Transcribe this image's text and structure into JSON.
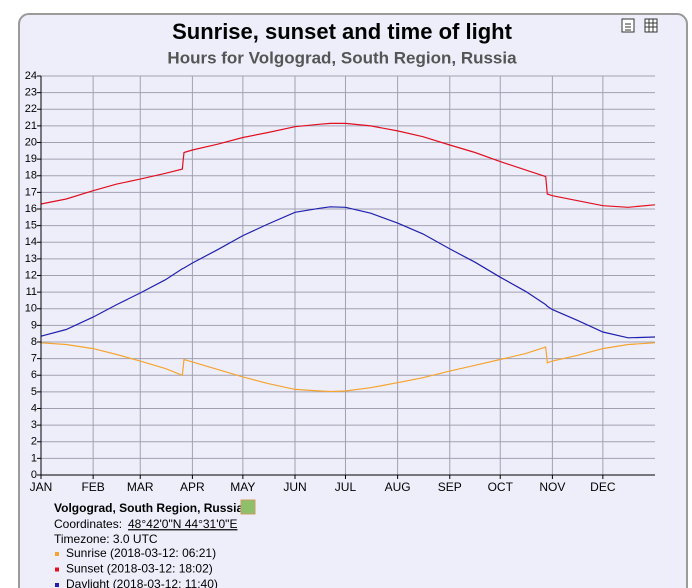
{
  "chart_data": {
    "type": "line",
    "title": "Sunrise, sunset and time of light",
    "subtitle": "Hours for Volgograd, South Region, Russia",
    "x": [
      0,
      15,
      31,
      45,
      59,
      74,
      84,
      85,
      90,
      105,
      120,
      135,
      151,
      166,
      172,
      181,
      196,
      212,
      227,
      243,
      258,
      273,
      288,
      300,
      301,
      304,
      319,
      334,
      349,
      365
    ],
    "xlim": [
      0,
      365
    ],
    "xticks": [
      {
        "value": 0,
        "label": "JAN"
      },
      {
        "value": 31,
        "label": "FEB"
      },
      {
        "value": 59,
        "label": "MAR"
      },
      {
        "value": 90,
        "label": "APR"
      },
      {
        "value": 120,
        "label": "MAY"
      },
      {
        "value": 151,
        "label": "JUN"
      },
      {
        "value": 181,
        "label": "JUL"
      },
      {
        "value": 212,
        "label": "AUG"
      },
      {
        "value": 243,
        "label": "SEP"
      },
      {
        "value": 273,
        "label": "OCT"
      },
      {
        "value": 304,
        "label": "NOV"
      },
      {
        "value": 334,
        "label": "DEC"
      }
    ],
    "ylim": [
      0,
      24
    ],
    "yticks": [
      0,
      1,
      2,
      3,
      4,
      5,
      6,
      7,
      8,
      9,
      10,
      11,
      12,
      13,
      14,
      15,
      16,
      17,
      18,
      19,
      20,
      21,
      22,
      23,
      24
    ],
    "grid": true,
    "series": [
      {
        "name": "Sunrise (2018-03-12: 06:21)",
        "color": "#f5a430",
        "values": [
          7.95,
          7.85,
          7.6,
          7.25,
          6.85,
          6.4,
          6.0,
          6.95,
          6.8,
          6.35,
          5.9,
          5.5,
          5.15,
          5.05,
          5.02,
          5.05,
          5.25,
          5.55,
          5.85,
          6.25,
          6.6,
          6.95,
          7.3,
          7.7,
          6.75,
          6.85,
          7.2,
          7.6,
          7.85,
          7.95
        ]
      },
      {
        "name": "Sunset (2018-03-12: 18:02)",
        "color": "#e01020",
        "values": [
          16.3,
          16.6,
          17.1,
          17.5,
          17.8,
          18.15,
          18.4,
          19.4,
          19.55,
          19.9,
          20.3,
          20.6,
          20.95,
          21.1,
          21.15,
          21.15,
          21.0,
          20.7,
          20.35,
          19.85,
          19.4,
          18.85,
          18.35,
          17.95,
          16.9,
          16.8,
          16.5,
          16.2,
          16.1,
          16.25
        ]
      },
      {
        "name": "Daylight (2018-03-12: 11:40)",
        "color": "#2020b0",
        "values": [
          8.35,
          8.75,
          9.5,
          10.25,
          10.95,
          11.75,
          12.4,
          12.45,
          12.75,
          13.55,
          14.4,
          15.1,
          15.8,
          16.05,
          16.13,
          16.1,
          15.75,
          15.15,
          14.5,
          13.6,
          12.8,
          11.9,
          11.05,
          10.25,
          10.15,
          9.95,
          9.3,
          8.6,
          8.25,
          8.3
        ]
      }
    ],
    "location": "Volgograd, South Region, Russia",
    "coordinates_label": "Coordinates:",
    "coordinates": "48°42'0\"N 44°31'0\"E",
    "timezone": "Timezone: 3.0 UTC"
  }
}
